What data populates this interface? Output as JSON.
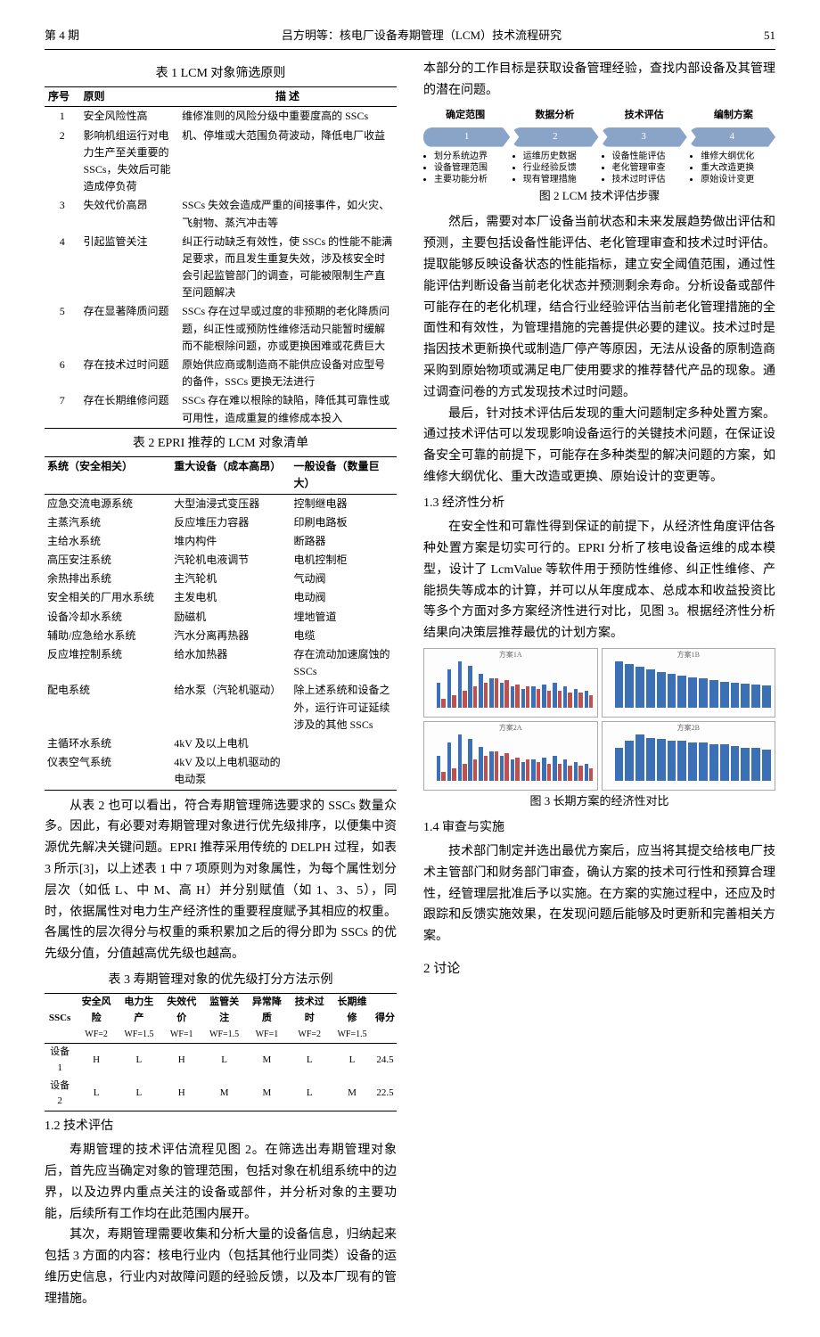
{
  "header": {
    "issue": "第 4 期",
    "title": "吕方明等：核电厂设备寿期管理（LCM）技术流程研究",
    "page": "51"
  },
  "table1": {
    "title": "表 1   LCM 对象筛选原则",
    "head": [
      "序号",
      "原则",
      "描 述"
    ],
    "rows": [
      [
        "1",
        "安全风险性高",
        "维修准则的风险分级中重要度高的 SSCs"
      ],
      [
        "2",
        "影响机组运行对电力生产至关重要的 SSCs，失效后可能造成停负荷",
        "机、停堆或大范围负荷波动，降低电厂收益"
      ],
      [
        "3",
        "失效代价高昂",
        "SSCs 失效会造成严重的间接事件，如火灾、飞射物、蒸汽冲击等"
      ],
      [
        "4",
        "引起监管关注",
        "纠正行动缺乏有效性，使 SSCs 的性能不能满足要求，而且发生重复失效，涉及核安全时会引起监管部门的调查，可能被限制生产直至问题解决"
      ],
      [
        "5",
        "存在显著降质问题",
        "SSCs 存在过早或过度的非预期的老化降质问题，纠正性或预防性维修活动只能暂时缓解而不能根除问题，亦或更换困难或花费巨大"
      ],
      [
        "6",
        "存在技术过时问题",
        "原始供应商或制造商不能供应设备对应型号的备件，SSCs 更换无法进行"
      ],
      [
        "7",
        "存在长期维修问题",
        "SSCs 存在难以根除的缺陷，降低其可靠性或可用性，造成重复的维修成本投入"
      ]
    ]
  },
  "table2": {
    "title": "表 2   EPRI 推荐的 LCM 对象清单",
    "head": [
      "系统（安全相关）",
      "重大设备（成本高昂）",
      "一般设备（数量巨大）"
    ],
    "rows": [
      [
        "应急交流电源系统",
        "大型油浸式变压器",
        "控制继电器"
      ],
      [
        "主蒸汽系统",
        "反应堆压力容器",
        "印刷电路板"
      ],
      [
        "主给水系统",
        "堆内构件",
        "断路器"
      ],
      [
        "高压安注系统",
        "汽轮机电液调节",
        "电机控制柜"
      ],
      [
        "余热排出系统",
        "主汽轮机",
        "气动阀"
      ],
      [
        "安全相关的厂用水系统",
        "主发电机",
        "电动阀"
      ],
      [
        "设备冷却水系统",
        "励磁机",
        "埋地管道"
      ],
      [
        "辅助/应急给水系统",
        "汽水分离再热器",
        "电缆"
      ],
      [
        "反应堆控制系统",
        "给水加热器",
        "存在流动加速腐蚀的 SSCs"
      ],
      [
        "配电系统",
        "给水泵（汽轮机驱动）",
        "除上述系统和设备之外，运行许可证延续涉及的其他 SSCs"
      ],
      [
        "主循环水系统",
        "4kV 及以上电机",
        ""
      ],
      [
        "仪表空气系统",
        "4kV 及以上电机驱动的电动泵",
        ""
      ]
    ]
  },
  "para_left_1": "从表 2 也可以看出，符合寿期管理筛选要求的 SSCs 数量众多。因此，有必要对寿期管理对象进行优先级排序，以便集中资源优先解决关键问题。EPRI 推荐采用传统的 DELPH 过程，如表 3 所示[3]，以上述表 1 中 7 项原则为对象属性，为每个属性划分层次（如低 L、中 M、高 H）并分别赋值（如 1、3、5），同时，依据属性对电力生产经济性的重要程度赋予其相应的权重。各属性的层次得分与权重的乘积累加之后的得分即为 SSCs 的优先级分值，分值越高优先级也越高。",
  "table3": {
    "title": "表 3   寿期管理对象的优先级打分方法示例",
    "head1": [
      "SSCs",
      "安全风险",
      "电力生产",
      "失效代价",
      "监管关注",
      "异常降质",
      "技术过时",
      "长期维修",
      "得分"
    ],
    "head2": [
      "",
      "WF=2",
      "WF=1.5",
      "WF=1",
      "WF=1.5",
      "WF=1",
      "WF=2",
      "WF=1.5",
      ""
    ],
    "rows": [
      [
        "设备 1",
        "H",
        "L",
        "H",
        "L",
        "M",
        "L",
        "L",
        "24.5"
      ],
      [
        "设备 2",
        "L",
        "L",
        "H",
        "M",
        "M",
        "L",
        "M",
        "22.5"
      ]
    ]
  },
  "sec12_title": "1.2   技术评估",
  "para_left_2": "寿期管理的技术评估流程见图 2。在筛选出寿期管理对象后，首先应当确定对象的管理范围，包括对象在机组系统中的边界，以及边界内重点关注的设备或部件，并分析对象的主要功能，后续所有工作均在此范围内展开。",
  "para_left_3": "其次，寿期管理需要收集和分析大量的设备信息，归纳起来包括 3 方面的内容：核电行业内（包括其他行业同类）设备的运维历史信息，行业内对故障问题的经验反馈，以及本厂现有的管理措施。",
  "para_right_1": "本部分的工作目标是获取设备管理经验，查找内部设备及其管理的潜在问题。",
  "fig2": {
    "headers": [
      "确定范围",
      "数据分析",
      "技术评估",
      "编制方案"
    ],
    "steps": [
      "1",
      "2",
      "3",
      "4"
    ],
    "bullets": [
      [
        "划分系统边界",
        "设备管理范围",
        "主要功能分析"
      ],
      [
        "运维历史数据",
        "行业经验反馈",
        "现有管理措施"
      ],
      [
        "设备性能评估",
        "老化管理审查",
        "技术过时评估"
      ],
      [
        "维修大纲优化",
        "重大改造更换",
        "原始设计变更"
      ]
    ],
    "caption": "图 2   LCM 技术评估步骤",
    "step_color": "#8aa4c8"
  },
  "para_right_2": "然后，需要对本厂设备当前状态和未来发展趋势做出评估和预测，主要包括设备性能评估、老化管理审查和技术过时评估。提取能够反映设备状态的性能指标，建立安全阈值范围，通过性能评估判断设备当前老化状态并预测剩余寿命。分析设备或部件可能存在的老化机理，结合行业经验评估当前老化管理措施的全面性和有效性，为管理措施的完善提供必要的建议。技术过时是指因技术更新换代或制造厂停产等原因，无法从设备的原制造商采购到原始物项或满足电厂使用要求的推荐替代产品的现象。通过调查问卷的方式发现技术过时问题。",
  "para_right_3": "最后，针对技术评估后发现的重大问题制定多种处置方案。通过技术评估可以发现影响设备运行的关键技术问题，在保证设备安全可靠的前提下，可能存在多种类型的解决问题的方案，如维修大纲优化、重大改造或更换、原始设计的变更等。",
  "sec13_title": "1.3   经济性分析",
  "para_right_4": "在安全性和可靠性得到保证的前提下，从经济性角度评估各种处置方案是切实可行的。EPRI 分析了核电设备运维的成本模型，设计了 LcmValue 等软件用于预防性维修、纠正性维修、产能损失等成本的计算，并可以从年度成本、总成本和收益投资比等多个方面对多方案经济性进行对比，见图 3。根据经济性分析结果向决策层推荐最优的计划方案。",
  "fig3": {
    "caption": "图 3  长期方案的经济性对比",
    "panels": [
      "方案1A",
      "方案1B",
      "方案2A",
      "方案2B"
    ],
    "colors": [
      "#3b6fb6",
      "#c05050",
      "#5aa35a"
    ],
    "series1": [
      12,
      18,
      22,
      20,
      16,
      14,
      12,
      10,
      9,
      10,
      11,
      12,
      10,
      9,
      8
    ],
    "series2": [
      4,
      6,
      8,
      10,
      12,
      14,
      13,
      11,
      10,
      9,
      8,
      8,
      7,
      7,
      6
    ],
    "series3": [
      80,
      75,
      70,
      66,
      62,
      58,
      55,
      52,
      50,
      48,
      45,
      43,
      42,
      40,
      38
    ],
    "series4": [
      20,
      24,
      28,
      26,
      25,
      24,
      24,
      23,
      23,
      22,
      22,
      21,
      20,
      20,
      19
    ]
  },
  "sec14_title": "1.4   审查与实施",
  "para_right_5": "技术部门制定并选出最优方案后，应当将其提交给核电厂技术主管部门和财务部门审查，确认方案的技术可行性和预算合理性，经管理层批准后予以实施。在方案的实施过程中，还应及时跟踪和反馈实施效果，在发现问题后能够及时更新和完善相关方案。",
  "sec2_title": "2   讨论"
}
